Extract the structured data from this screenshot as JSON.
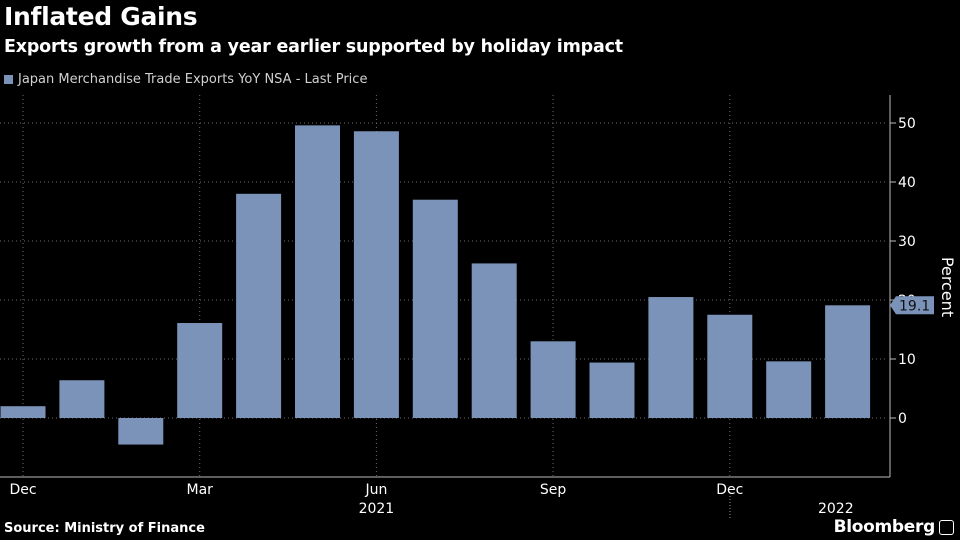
{
  "header": {
    "title": "Inflated Gains",
    "subtitle": "Exports growth from a year earlier supported by holiday impact"
  },
  "footer": {
    "source": "Source: Ministry of Finance",
    "brand": "Bloomberg"
  },
  "colors": {
    "bar": "#7b93b9",
    "background": "#000000",
    "grid": "#6b6b6b",
    "text": "#ffffff"
  },
  "chart_data": {
    "type": "bar",
    "title": "Inflated Gains",
    "subtitle": "Exports growth from a year earlier supported by holiday impact",
    "legend": [
      "Japan Merchandise Trade Exports YoY NSA - Last Price"
    ],
    "ylabel": "Percent",
    "xlabel": "",
    "ylim": [
      -9,
      55
    ],
    "yticks": [
      0,
      10,
      20,
      30,
      40,
      50
    ],
    "grid": true,
    "categories": [
      "Dec 2020",
      "Jan 2021",
      "Feb 2021",
      "Mar 2021",
      "Apr 2021",
      "May 2021",
      "Jun 2021",
      "Jul 2021",
      "Aug 2021",
      "Sep 2021",
      "Oct 2021",
      "Nov 2021",
      "Dec 2021",
      "Jan 2022",
      "Feb 2022"
    ],
    "values": [
      2.0,
      6.4,
      -4.5,
      16.1,
      38.0,
      49.6,
      48.6,
      37.0,
      26.2,
      13.0,
      9.4,
      20.5,
      17.5,
      9.6,
      19.1
    ],
    "xtick_labels": [
      {
        "label": "Dec",
        "index": 0
      },
      {
        "label": "Mar",
        "index": 3
      },
      {
        "label": "Jun",
        "index": 6
      },
      {
        "label": "Sep",
        "index": 9
      },
      {
        "label": "Dec",
        "index": 12
      }
    ],
    "year_labels": [
      {
        "label": "2021",
        "index": 6
      },
      {
        "label": "2022",
        "index": 13.8
      }
    ],
    "last_value_label": "19.1"
  }
}
